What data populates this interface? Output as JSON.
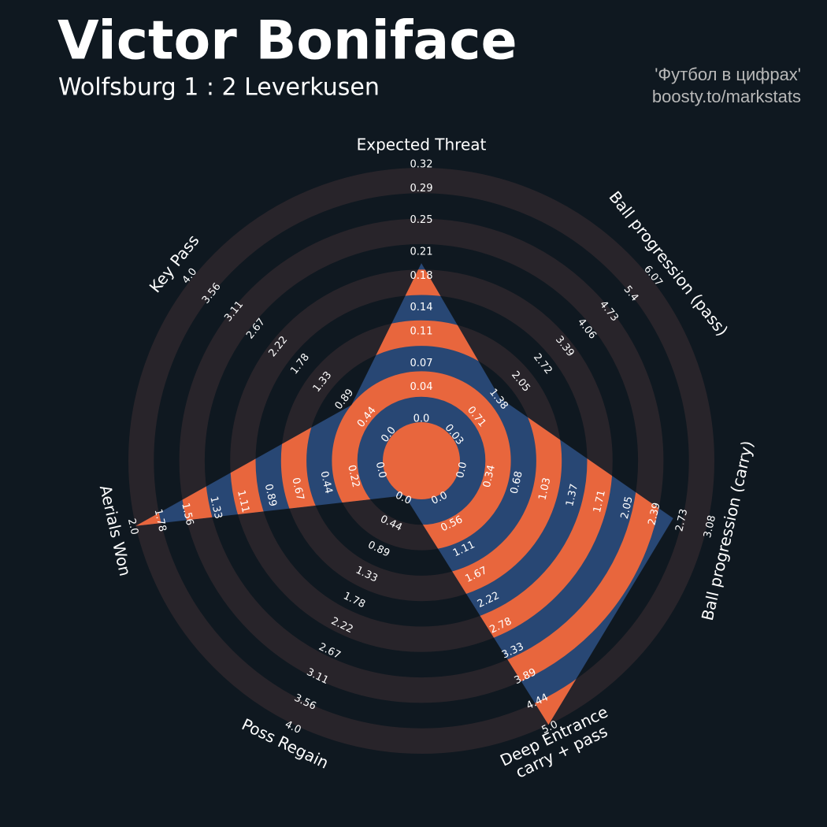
{
  "chart_data": {
    "type": "radar",
    "title": "Victor Boniface",
    "subtitle": "Wolfsburg 1 : 2 Leverkusen",
    "credits": [
      "'Футбол в цифрах'",
      "boosty.to/markstats"
    ],
    "categories": [
      "Expected Threat",
      "Ball progression (pass)",
      "Ball progression (carry)",
      [
        "Deep Entrance",
        "carry + pass"
      ],
      "Poss Regain",
      "Aerials Won",
      "Key Pass"
    ],
    "axes": [
      {
        "lim": [
          0,
          0.32
        ],
        "ticks": [
          {
            "value": 0,
            "label": "0.0"
          },
          0.04,
          0.07,
          0.11,
          0.14,
          0.18,
          0.21,
          0.25,
          0.29,
          0.32
        ]
      },
      {
        "lim": [
          0.03,
          6.07
        ],
        "ticks": [
          0.03,
          0.71,
          1.38,
          2.05,
          2.72,
          3.39,
          4.06,
          4.73,
          5.4,
          6.07
        ]
      },
      {
        "lim": [
          0,
          3.08
        ],
        "ticks": [
          {
            "value": 0,
            "label": "0.0"
          },
          0.34,
          0.68,
          1.03,
          1.37,
          1.71,
          2.05,
          2.39,
          2.73,
          3.08
        ]
      },
      {
        "lim": [
          0,
          5
        ],
        "ticks": [
          {
            "value": 0,
            "label": "0.0"
          },
          0.56,
          1.11,
          1.67,
          2.22,
          2.78,
          3.33,
          3.89,
          4.44,
          {
            "value": 5,
            "label": "5.0"
          }
        ]
      },
      {
        "lim": [
          0,
          4
        ],
        "ticks": [
          {
            "value": 0,
            "label": "0.0"
          },
          0.44,
          0.89,
          1.33,
          1.78,
          2.22,
          2.67,
          3.11,
          3.56,
          {
            "value": 4,
            "label": "4.0"
          }
        ]
      },
      {
        "lim": [
          0,
          2
        ],
        "ticks": [
          {
            "value": 0,
            "label": "0.0"
          },
          0.22,
          0.44,
          0.67,
          0.89,
          1.11,
          1.33,
          1.56,
          1.78,
          {
            "value": 2,
            "label": "2.0"
          }
        ]
      },
      {
        "lim": [
          0,
          4
        ],
        "ticks": [
          {
            "value": 0,
            "label": "0.0"
          },
          0.44,
          0.89,
          1.33,
          1.78,
          2.22,
          2.67,
          3.11,
          3.56,
          {
            "value": 4,
            "label": "4.0"
          }
        ]
      }
    ],
    "values": [
      0.2,
      1.5,
      2.66,
      5,
      0,
      2,
      0.8
    ],
    "color": "#284774",
    "band_color": "#e8663d",
    "ring_color": "#28242a"
  }
}
